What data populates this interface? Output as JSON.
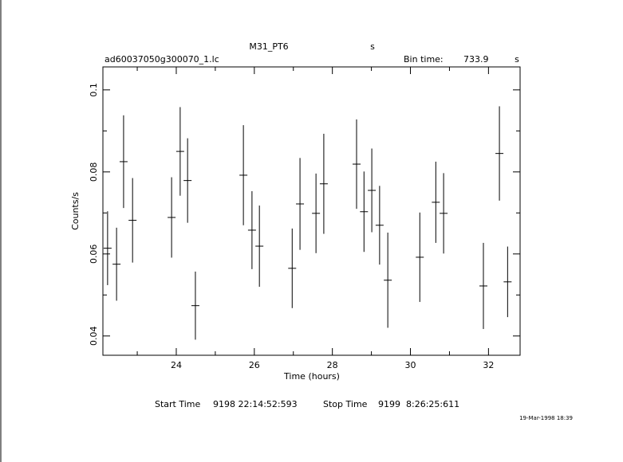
{
  "chart_data": {
    "type": "errorbar",
    "title": "M31_PT6",
    "title_unit": "s",
    "subtitle": "ad60037050g300070_1.lc",
    "bin_time_label": "Bin time:",
    "bin_time": 733.9,
    "bin_time_unit": "s",
    "xlabel": "Time (hours)",
    "ylabel": "Counts/s",
    "start_label": "Start Time",
    "start": "9198 22:14:52:593",
    "stop_label": "Stop Time",
    "stop": "9199  8:26:25:611",
    "date": "19-Mar-1998 18:39",
    "xlim": [
      22.12,
      32.81
    ],
    "xticks": [
      24,
      26,
      28,
      30,
      32
    ],
    "xminorticks": [
      23,
      25,
      27,
      29,
      31
    ],
    "ylim": [
      0.0353,
      0.1056
    ],
    "yticks": [
      0.04,
      0.06,
      0.08,
      0.1
    ],
    "yminorticks": [
      0.05,
      0.07,
      0.09
    ],
    "color": "#000000",
    "x": [
      22.24,
      22.47,
      22.65,
      22.88,
      23.88,
      24.1,
      24.29,
      24.49,
      25.72,
      25.94,
      26.13,
      26.97,
      27.17,
      27.58,
      27.78,
      28.62,
      28.81,
      29.01,
      29.21,
      29.42,
      30.24,
      30.65,
      30.85,
      31.87,
      32.28,
      32.49
    ],
    "values": [
      0.0614,
      0.0575,
      0.0825,
      0.0682,
      0.0689,
      0.085,
      0.0779,
      0.0474,
      0.0792,
      0.0658,
      0.0619,
      0.0565,
      0.0722,
      0.0699,
      0.0771,
      0.0819,
      0.0703,
      0.0755,
      0.067,
      0.0536,
      0.0592,
      0.0726,
      0.0699,
      0.0522,
      0.0845,
      0.0532
    ],
    "errors": [
      0.009,
      0.0089,
      0.0113,
      0.0103,
      0.0098,
      0.0108,
      0.0103,
      0.0083,
      0.0122,
      0.0095,
      0.0099,
      0.0097,
      0.0112,
      0.0097,
      0.0122,
      0.0109,
      0.0098,
      0.0102,
      0.0096,
      0.0116,
      0.0109,
      0.0099,
      0.0098,
      0.0105,
      0.0115,
      0.0086
    ],
    "xerr": [
      0.102,
      0.102,
      0.102,
      0.102,
      0.102,
      0.102,
      0.102,
      0.102,
      0.102,
      0.102,
      0.102,
      0.102,
      0.102,
      0.102,
      0.102,
      0.102,
      0.102,
      0.102,
      0.102,
      0.102,
      0.102,
      0.102,
      0.102,
      0.102,
      0.102,
      0.102
    ]
  }
}
